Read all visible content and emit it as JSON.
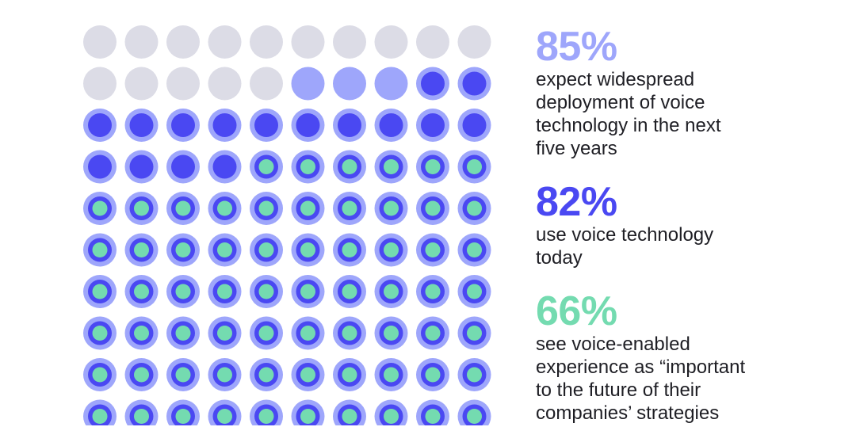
{
  "chart_data": {
    "type": "waffle",
    "grid": {
      "rows": 10,
      "cols": 10,
      "total": 100
    },
    "series": [
      {
        "value": 85,
        "color": "#9ea6fb"
      },
      {
        "value": 82,
        "color": "#4a48f2"
      },
      {
        "value": 66,
        "color": "#74dbb0"
      }
    ],
    "empty_color": "#dcdce6"
  },
  "stats": [
    {
      "percent": "85%",
      "text": "expect widespread deployment of voice technology in the next five years",
      "lines": [
        "expect widespread",
        "deployment of voice",
        "technology in the next",
        "five years"
      ],
      "color": "#9ea6fb"
    },
    {
      "percent": "82%",
      "text": "use voice technology today",
      "lines": [
        "use voice technology",
        "today"
      ],
      "color": "#4a48f2"
    },
    {
      "percent": "66%",
      "text": "see voice-enabled experience as “important to the future of their companies’ strategies",
      "lines": [
        "see voice-enabled",
        "experience as “important",
        "to the future of their",
        "companies’ strategies"
      ],
      "color": "#74dbb0"
    }
  ]
}
